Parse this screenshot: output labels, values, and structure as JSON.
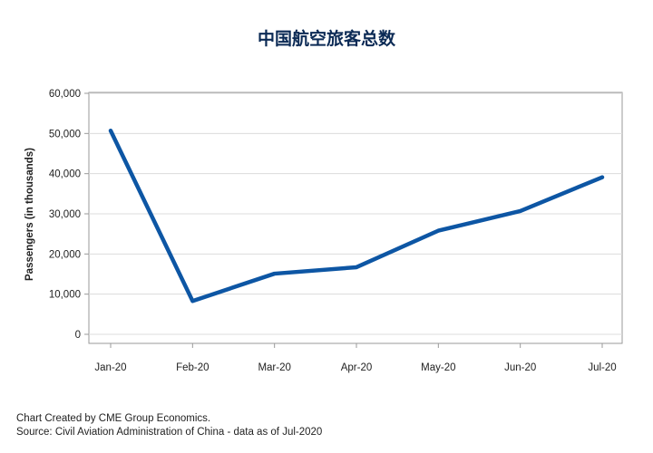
{
  "title": "中国航空旅客总数",
  "footer": {
    "line1": "Chart Created by CME Group Economics.",
    "line2": "Source: Civil Aviation Administration of China - data as of Jul-2020"
  },
  "colors": {
    "line": "#0d56a4",
    "grid": "#dcdcdc",
    "axis": "#9a9a9a"
  },
  "chart_data": {
    "type": "line",
    "title": "中国航空旅客总数",
    "xlabel": "",
    "ylabel": "Passengers (in thousands)",
    "categories": [
      "Jan-20",
      "Feb-20",
      "Mar-20",
      "Apr-20",
      "May-20",
      "Jun-20",
      "Jul-20"
    ],
    "values": [
      50700,
      8300,
      15100,
      16700,
      25800,
      30700,
      39100
    ],
    "ylim": [
      0,
      60000
    ],
    "yticks": [
      0,
      10000,
      20000,
      30000,
      40000,
      50000,
      60000
    ],
    "ytick_labels": [
      "0",
      "10,000",
      "20,000",
      "30,000",
      "40,000",
      "50,000",
      "60,000"
    ],
    "grid": true,
    "legend": "none"
  }
}
